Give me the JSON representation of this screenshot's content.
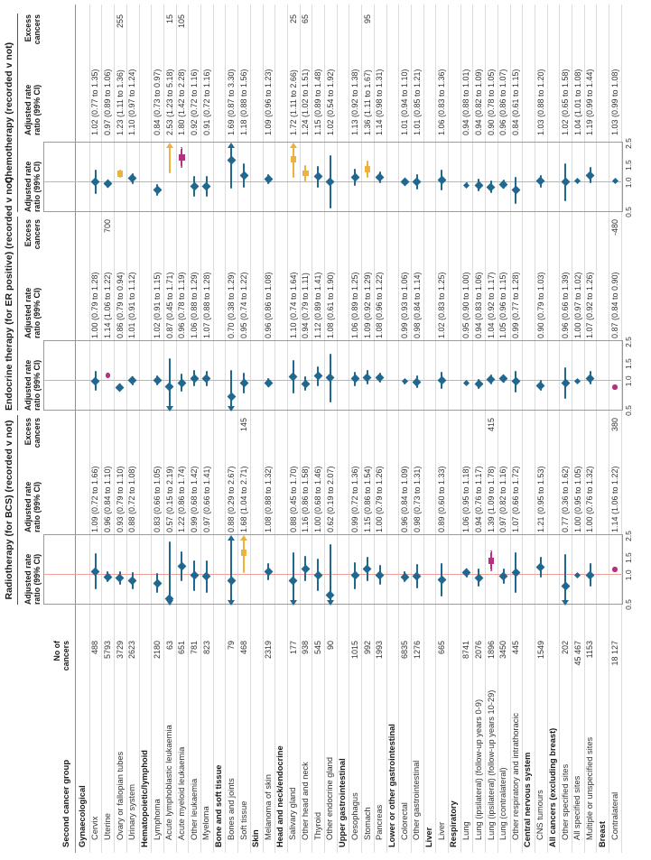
{
  "chart_data": {
    "type": "scatter",
    "subtype": "forest-plot-three-panel",
    "scale": "log",
    "axis_range": [
      0.5,
      2.5
    ],
    "axis_ticks": [
      "0.5",
      "1.0",
      "1.5",
      "2.5"
    ],
    "row_label_header": "Second cancer group",
    "count_header": [
      "No of",
      "cancers"
    ],
    "colors": {
      "blue": "#20688f",
      "gold": "#ecb13e",
      "magenta": "#b82f80",
      "reference_line": "#f0a097",
      "grid": "#dcdcdc",
      "box_border": "#9a9a9a",
      "text": "#333333"
    },
    "panels": [
      {
        "key": "radiotherapy",
        "title": "Radiotherapy (for BCS) (recorded v not)",
        "plot_header": [
          "Adjusted rate",
          "ratio (99% CI)"
        ],
        "text_header": [
          "Adjusted rate",
          "ratio (99% CI)"
        ],
        "excess_header": [
          "Excess",
          "cancers"
        ]
      },
      {
        "key": "endocrine",
        "title": "Endocrine therapy (for ER positive) (recorded v not)",
        "plot_header": [
          "Adjusted rate",
          "ratio (99% CI)"
        ],
        "text_header": [
          "Adjusted rate",
          "ratio (99% CI)"
        ],
        "excess_header": [
          "Excess",
          "cancers"
        ]
      },
      {
        "key": "chemotherapy",
        "title": "Chemotherapy (recorded v not)",
        "plot_header": [
          "Adjusted rate",
          "ratio (99% CI)"
        ],
        "text_header": [
          "Adjusted rate",
          "ratio (99% CI)"
        ],
        "excess_header": [
          "Excess",
          "cancers"
        ]
      }
    ],
    "rows": [
      {
        "g": "Gynaecological"
      },
      {
        "l": "Cervix",
        "n": "488",
        "r": {
          "t": "1.09 (0.72 to 1.66)",
          "v": 1.09,
          "lo": 0.72,
          "hi": 1.66,
          "m": "b"
        },
        "e": {
          "t": "1.00 (0.79 to 1.28)",
          "v": 1.0,
          "lo": 0.79,
          "hi": 1.28,
          "m": "b"
        },
        "c": {
          "t": "1.02 (0.77 to 1.35)",
          "v": 1.02,
          "lo": 0.77,
          "hi": 1.35,
          "m": "b"
        }
      },
      {
        "l": "Uterine",
        "n": "5793",
        "r": {
          "t": "0.96 (0.84 to 1.10)",
          "v": 0.96,
          "lo": 0.84,
          "hi": 1.1,
          "m": "b"
        },
        "e": {
          "t": "1.14 (1.06 to 1.22)",
          "v": 1.14,
          "lo": 1.06,
          "hi": 1.22,
          "m": "mc",
          "x": "700"
        },
        "c": {
          "t": "0.97 (0.89 to 1.06)",
          "v": 0.97,
          "lo": 0.89,
          "hi": 1.06,
          "m": "b"
        }
      },
      {
        "l": "Ovary or fallopian tubes",
        "n": "3729",
        "r": {
          "t": "0.93 (0.79 to 1.10)",
          "v": 0.93,
          "lo": 0.79,
          "hi": 1.1,
          "m": "b"
        },
        "e": {
          "t": "0.86 (0.79 to 0.94)",
          "v": 0.86,
          "lo": 0.79,
          "hi": 0.94,
          "m": "b"
        },
        "c": {
          "t": "1.23 (1.11 to 1.36)",
          "v": 1.23,
          "lo": 1.11,
          "hi": 1.36,
          "m": "g",
          "x": "255"
        }
      },
      {
        "l": "Urinary system",
        "n": "2623",
        "r": {
          "t": "0.88 (0.72 to 1.08)",
          "v": 0.88,
          "lo": 0.72,
          "hi": 1.08,
          "m": "b"
        },
        "e": {
          "t": "1.01 (0.91 to 1.12)",
          "v": 1.01,
          "lo": 0.91,
          "hi": 1.12,
          "m": "b"
        },
        "c": {
          "t": "1.10 (0.97 to 1.24)",
          "v": 1.1,
          "lo": 0.97,
          "hi": 1.24,
          "m": "b"
        }
      },
      {
        "g": "Hematopoietic/lymphoid"
      },
      {
        "l": "Lymphoma",
        "n": "2180",
        "r": {
          "t": "0.83 (0.66 to 1.05)",
          "v": 0.83,
          "lo": 0.66,
          "hi": 1.05,
          "m": "b"
        },
        "e": {
          "t": "1.02 (0.91 to 1.15)",
          "v": 1.02,
          "lo": 0.91,
          "hi": 1.15,
          "m": "b"
        },
        "c": {
          "t": "0.84 (0.73 to 0.97)",
          "v": 0.84,
          "lo": 0.73,
          "hi": 0.97,
          "m": "b"
        }
      },
      {
        "l": "Acute lymphoblastic leukaemia",
        "n": "63",
        "r": {
          "t": "0.57 (0.15 to 2.19)",
          "v": 0.57,
          "lo": 0.15,
          "hi": 2.19,
          "m": "b"
        },
        "e": {
          "t": "0.87 (0.45 to 1.71)",
          "v": 0.87,
          "lo": 0.45,
          "hi": 1.71,
          "m": "b"
        },
        "c": {
          "t": "2.53 (1.23 to 5.18)",
          "v": 2.53,
          "lo": 1.23,
          "hi": 5.18,
          "m": "ga",
          "x": "15"
        }
      },
      {
        "l": "Acute myeloid leukaemia",
        "n": "651",
        "r": {
          "t": "1.22 (0.86 to 1.74)",
          "v": 1.22,
          "lo": 0.86,
          "hi": 1.74,
          "m": "b"
        },
        "e": {
          "t": "0.96 (0.78 to 1.19)",
          "v": 0.96,
          "lo": 0.78,
          "hi": 1.19,
          "m": "b"
        },
        "c": {
          "t": "1.80 (1.42 to 2.28)",
          "v": 1.8,
          "lo": 1.42,
          "hi": 2.28,
          "m": "ms",
          "x": "105"
        }
      },
      {
        "l": "Other leukaemia",
        "n": "781",
        "r": {
          "t": "0.99 (0.68 to 1.42)",
          "v": 0.99,
          "lo": 0.68,
          "hi": 1.42,
          "m": "b"
        },
        "e": {
          "t": "1.06 (0.88 to 1.29)",
          "v": 1.06,
          "lo": 0.88,
          "hi": 1.29,
          "m": "b"
        },
        "c": {
          "t": "0.92 (0.72 to 1.16)",
          "v": 0.92,
          "lo": 0.72,
          "hi": 1.16,
          "m": "b"
        }
      },
      {
        "l": "Myeloma",
        "n": "823",
        "r": {
          "t": "0.97 (0.66 to 1.41)",
          "v": 0.97,
          "lo": 0.66,
          "hi": 1.41,
          "m": "b"
        },
        "e": {
          "t": "1.07 (0.88 to 1.28)",
          "v": 1.07,
          "lo": 0.88,
          "hi": 1.28,
          "m": "b"
        },
        "c": {
          "t": "0.91 (0.72 to 1.16)",
          "v": 0.91,
          "lo": 0.72,
          "hi": 1.16,
          "m": "b"
        }
      },
      {
        "g": "Bone and soft tissue"
      },
      {
        "l": "Bones and joints",
        "n": "79",
        "r": {
          "t": "0.88 (0.29 to 2.67)",
          "v": 0.88,
          "lo": 0.29,
          "hi": 2.67,
          "m": "b"
        },
        "e": {
          "t": "0.70 (0.38 to 1.29)",
          "v": 0.7,
          "lo": 0.38,
          "hi": 1.29,
          "m": "b"
        },
        "c": {
          "t": "1.69 (0.87 to 3.30)",
          "v": 1.69,
          "lo": 0.87,
          "hi": 3.3,
          "m": "b"
        }
      },
      {
        "l": "Soft tissue",
        "n": "468",
        "r": {
          "t": "1.68 (1.04 to 2.71)",
          "v": 1.68,
          "lo": 1.04,
          "hi": 2.71,
          "m": "g",
          "x": "145"
        },
        "e": {
          "t": "0.95 (0.74 to 1.22)",
          "v": 0.95,
          "lo": 0.74,
          "hi": 1.22,
          "m": "b"
        },
        "c": {
          "t": "1.18 (0.88 to 1.56)",
          "v": 1.18,
          "lo": 0.88,
          "hi": 1.56,
          "m": "b"
        }
      },
      {
        "g": "Skin"
      },
      {
        "l": "Melanoma of skin",
        "n": "2319",
        "r": {
          "t": "1.08 (0.88 to 1.32)",
          "v": 1.08,
          "lo": 0.88,
          "hi": 1.32,
          "m": "b"
        },
        "e": {
          "t": "0.96 (0.86 to 1.08)",
          "v": 0.96,
          "lo": 0.86,
          "hi": 1.08,
          "m": "b"
        },
        "c": {
          "t": "1.09 (0.96 to 1.23)",
          "v": 1.09,
          "lo": 0.96,
          "hi": 1.23,
          "m": "b"
        }
      },
      {
        "g": "Head and neck/endocrine"
      },
      {
        "l": "Salivary gland",
        "n": "177",
        "r": {
          "t": "0.88 (0.45 to 1.70)",
          "v": 0.88,
          "lo": 0.45,
          "hi": 1.7,
          "m": "b"
        },
        "e": {
          "t": "1.10 (0.74 to 1.64)",
          "v": 1.1,
          "lo": 0.74,
          "hi": 1.64,
          "m": "b"
        },
        "c": {
          "t": "1.72 (1.11 to 2.66)",
          "v": 1.72,
          "lo": 1.11,
          "hi": 2.66,
          "m": "g",
          "x": "25"
        }
      },
      {
        "l": "Other head and neck",
        "n": "938",
        "r": {
          "t": "1.16 (0.86 to 1.58)",
          "v": 1.16,
          "lo": 0.86,
          "hi": 1.58,
          "m": "b"
        },
        "e": {
          "t": "0.94 (0.79 to 1.11)",
          "v": 0.94,
          "lo": 0.79,
          "hi": 1.11,
          "m": "b"
        },
        "c": {
          "t": "1.24 (1.02 to 1.51)",
          "v": 1.24,
          "lo": 1.02,
          "hi": 1.51,
          "m": "g",
          "x": "65"
        }
      },
      {
        "l": "Thyroid",
        "n": "545",
        "r": {
          "t": "1.00 (0.68 to 1.46)",
          "v": 1.0,
          "lo": 0.68,
          "hi": 1.46,
          "m": "b"
        },
        "e": {
          "t": "1.12 (0.89 to 1.41)",
          "v": 1.12,
          "lo": 0.89,
          "hi": 1.41,
          "m": "b"
        },
        "c": {
          "t": "1.15 (0.89 to 1.48)",
          "v": 1.15,
          "lo": 0.89,
          "hi": 1.48,
          "m": "b"
        }
      },
      {
        "l": "Other endocrine gland",
        "n": "90",
        "r": {
          "t": "0.62 (0.19 to 2.07)",
          "v": 0.62,
          "lo": 0.19,
          "hi": 2.07,
          "m": "b"
        },
        "e": {
          "t": "1.08 (0.61 to 1.90)",
          "v": 1.08,
          "lo": 0.61,
          "hi": 1.9,
          "m": "b"
        },
        "c": {
          "t": "1.02 (0.54 to 1.92)",
          "v": 1.02,
          "lo": 0.54,
          "hi": 1.92,
          "m": "b"
        }
      },
      {
        "g": "Upper gastrointestinal"
      },
      {
        "l": "Oesophagus",
        "n": "1015",
        "r": {
          "t": "0.99 (0.72 to 1.36)",
          "v": 0.99,
          "lo": 0.72,
          "hi": 1.36,
          "m": "b"
        },
        "e": {
          "t": "1.06 (0.89 to 1.25)",
          "v": 1.06,
          "lo": 0.89,
          "hi": 1.25,
          "m": "b"
        },
        "c": {
          "t": "1.13 (0.92 to 1.38)",
          "v": 1.13,
          "lo": 0.92,
          "hi": 1.38,
          "m": "b"
        }
      },
      {
        "l": "Stomach",
        "n": "992",
        "r": {
          "t": "1.15 (0.86 to 1.54)",
          "v": 1.15,
          "lo": 0.86,
          "hi": 1.54,
          "m": "b"
        },
        "e": {
          "t": "1.09 (0.92 to 1.29)",
          "v": 1.09,
          "lo": 0.92,
          "hi": 1.29,
          "m": "b"
        },
        "c": {
          "t": "1.36 (1.11 to 1.67)",
          "v": 1.36,
          "lo": 1.11,
          "hi": 1.67,
          "m": "g",
          "x": "95"
        }
      },
      {
        "l": "Pancreas",
        "n": "1993",
        "r": {
          "t": "1.00 (0.79 to 1.26)",
          "v": 1.0,
          "lo": 0.79,
          "hi": 1.26,
          "m": "b"
        },
        "e": {
          "t": "1.08 (0.96 to 1.22)",
          "v": 1.08,
          "lo": 0.96,
          "hi": 1.22,
          "m": "b"
        },
        "c": {
          "t": "1.14 (0.98 to 1.31)",
          "v": 1.14,
          "lo": 0.98,
          "hi": 1.31,
          "m": "b"
        }
      },
      {
        "g": "Lower or other gastrointestinal"
      },
      {
        "l": "Colorectal",
        "n": "6835",
        "r": {
          "t": "0.96 (0.84 to 1.09)",
          "v": 0.96,
          "lo": 0.84,
          "hi": 1.09,
          "m": "b"
        },
        "e": {
          "t": "0.99 (0.93 to 1.06)",
          "v": 0.99,
          "lo": 0.93,
          "hi": 1.06,
          "m": "b"
        },
        "c": {
          "t": "1.01 (0.94 to 1.10)",
          "v": 1.01,
          "lo": 0.94,
          "hi": 1.1,
          "m": "b"
        }
      },
      {
        "l": "Other gastrointestinal",
        "n": "1276",
        "r": {
          "t": "0.98 (0.73 to 1.31)",
          "v": 0.98,
          "lo": 0.73,
          "hi": 1.31,
          "m": "b"
        },
        "e": {
          "t": "0.98 (0.84 to 1.14)",
          "v": 0.98,
          "lo": 0.84,
          "hi": 1.14,
          "m": "b"
        },
        "c": {
          "t": "1.01 (0.85 to 1.21)",
          "v": 1.01,
          "lo": 0.85,
          "hi": 1.21,
          "m": "b"
        }
      },
      {
        "g": "Liver"
      },
      {
        "l": "Liver",
        "n": "665",
        "r": {
          "t": "0.89 (0.60 to 1.33)",
          "v": 0.89,
          "lo": 0.6,
          "hi": 1.33,
          "m": "b"
        },
        "e": {
          "t": "1.02 (0.83 to 1.25)",
          "v": 1.02,
          "lo": 0.83,
          "hi": 1.25,
          "m": "b"
        },
        "c": {
          "t": "1.06 (0.83 to 1.36)",
          "v": 1.06,
          "lo": 0.83,
          "hi": 1.36,
          "m": "b"
        }
      },
      {
        "g": "Respiratory"
      },
      {
        "l": "Lung",
        "n": "8741",
        "r": {
          "t": "1.06 (0.95 to 1.18)",
          "v": 1.06,
          "lo": 0.95,
          "hi": 1.18,
          "m": "b"
        },
        "e": {
          "t": "0.95 (0.90 to 1.00)",
          "v": 0.95,
          "lo": 0.9,
          "hi": 1.0,
          "m": "b"
        },
        "c": {
          "t": "0.94 (0.88 to 1.01)",
          "v": 0.94,
          "lo": 0.88,
          "hi": 1.01,
          "m": "b"
        }
      },
      {
        "l": "Lung (ipsilateral) (follow-up years 0-9)",
        "n": "2076",
        "r": {
          "t": "0.94 (0.76 to 1.17)",
          "v": 0.94,
          "lo": 0.76,
          "hi": 1.17,
          "m": "b"
        },
        "e": {
          "t": "0.94 (0.83 to 1.06)",
          "v": 0.94,
          "lo": 0.83,
          "hi": 1.06,
          "m": "b"
        },
        "c": {
          "t": "0.94 (0.82 to 1.09)",
          "v": 0.94,
          "lo": 0.82,
          "hi": 1.09,
          "m": "b"
        }
      },
      {
        "l": "Lung (ipsilateral) (follow-up years 10-29)",
        "n": "1896",
        "r": {
          "t": "1.39 (1.09 to 1.78)",
          "v": 1.39,
          "lo": 1.09,
          "hi": 1.78,
          "m": "ms",
          "x": "415"
        },
        "e": {
          "t": "1.04 (0.92 to 1.17)",
          "v": 1.04,
          "lo": 0.92,
          "hi": 1.17,
          "m": "b"
        },
        "c": {
          "t": "0.90 (0.78 to 1.05)",
          "v": 0.9,
          "lo": 0.78,
          "hi": 1.05,
          "m": "b"
        }
      },
      {
        "l": "Lung (contralateral)",
        "n": "3450",
        "r": {
          "t": "0.97 (0.82 to 1.16)",
          "v": 0.97,
          "lo": 0.82,
          "hi": 1.16,
          "m": "b"
        },
        "e": {
          "t": "1.05 (0.96 to 1.15)",
          "v": 1.05,
          "lo": 0.96,
          "hi": 1.15,
          "m": "b"
        },
        "c": {
          "t": "0.96 (0.86 to 1.07)",
          "v": 0.96,
          "lo": 0.86,
          "hi": 1.07,
          "m": "b"
        }
      },
      {
        "l": "Other respiratory and intrathoracic",
        "n": "445",
        "r": {
          "t": "1.07 (0.66 to 1.72)",
          "v": 1.07,
          "lo": 0.66,
          "hi": 1.72,
          "m": "b"
        },
        "e": {
          "t": "0.99 (0.77 to 1.28)",
          "v": 0.99,
          "lo": 0.77,
          "hi": 1.28,
          "m": "b"
        },
        "c": {
          "t": "0.84 (0.61 to 1.15)",
          "v": 0.84,
          "lo": 0.61,
          "hi": 1.15,
          "m": "b"
        }
      },
      {
        "g": "Central nervous system"
      },
      {
        "l": "CNS tumours",
        "n": "1549",
        "r": {
          "t": "1.21 (0.95 to 1.53)",
          "v": 1.21,
          "lo": 0.95,
          "hi": 1.53,
          "m": "b"
        },
        "e": {
          "t": "0.90 (0.79 to 1.03)",
          "v": 0.9,
          "lo": 0.79,
          "hi": 1.03,
          "m": "b"
        },
        "c": {
          "t": "1.03 (0.88 to 1.20)",
          "v": 1.03,
          "lo": 0.88,
          "hi": 1.2,
          "m": "b"
        }
      },
      {
        "g": "All cancers (excluding breast)"
      },
      {
        "l": "Other specified sites",
        "n": "202",
        "r": {
          "t": "0.77 (0.36 to 1.62)",
          "v": 0.77,
          "lo": 0.36,
          "hi": 1.62,
          "m": "b"
        },
        "e": {
          "t": "0.96 (0.66 to 1.39)",
          "v": 0.96,
          "lo": 0.66,
          "hi": 1.39,
          "m": "b"
        },
        "c": {
          "t": "1.02 (0.65 to 1.58)",
          "v": 1.02,
          "lo": 0.65,
          "hi": 1.58,
          "m": "b"
        }
      },
      {
        "l": "All specified sites",
        "n": "45 467",
        "r": {
          "t": "1.00 (0.95 to 1.05)",
          "v": 1.0,
          "lo": 0.95,
          "hi": 1.05,
          "m": "b"
        },
        "e": {
          "t": "1.00 (0.97 to 1.02)",
          "v": 1.0,
          "lo": 0.97,
          "hi": 1.02,
          "m": "b"
        },
        "c": {
          "t": "1.04 (1.01 to 1.08)",
          "v": 1.04,
          "lo": 1.01,
          "hi": 1.08,
          "m": "b"
        }
      },
      {
        "l": "Multiple or unspecified sites",
        "n": "1153",
        "r": {
          "t": "1.00 (0.76 to 1.32)",
          "v": 1.0,
          "lo": 0.76,
          "hi": 1.32,
          "m": "b"
        },
        "e": {
          "t": "1.07 (0.92 to 1.26)",
          "v": 1.07,
          "lo": 0.92,
          "hi": 1.26,
          "m": "b"
        },
        "c": {
          "t": "1.19 (0.99 to 1.44)",
          "v": 1.19,
          "lo": 0.99,
          "hi": 1.44,
          "m": "b"
        }
      },
      {
        "g": "Breast"
      },
      {
        "l": "Contralateral",
        "n": "18 127",
        "r": {
          "t": "1.14 (1.06 to 1.22)",
          "v": 1.14,
          "lo": 1.06,
          "hi": 1.22,
          "m": "mc",
          "x": "380"
        },
        "e": {
          "t": "0.87 (0.84 to 0.90)",
          "v": 0.87,
          "lo": 0.84,
          "hi": 0.9,
          "m": "mc",
          "x": "-480"
        },
        "c": {
          "t": "1.03 (0.99 to 1.08)",
          "v": 1.03,
          "lo": 0.99,
          "hi": 1.08,
          "m": "b"
        }
      }
    ]
  }
}
